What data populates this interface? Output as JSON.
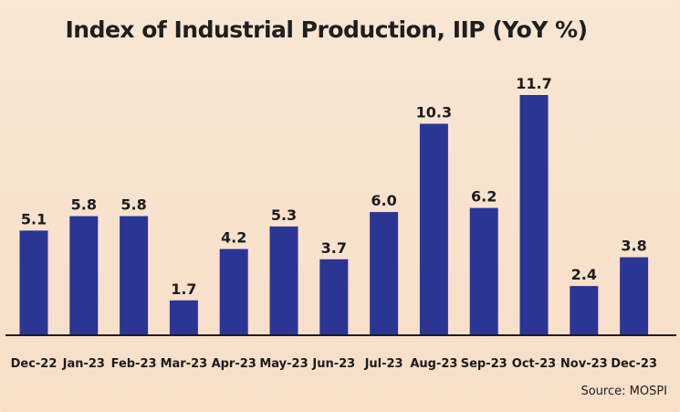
{
  "chart_data": {
    "type": "bar",
    "title": "Index of Industrial Production, IIP (YoY %)",
    "categories": [
      "Dec-22",
      "Jan-23",
      "Feb-23",
      "Mar-23",
      "Apr-23",
      "May-23",
      "Jun-23",
      "Jul-23",
      "Aug-23",
      "Sep-23",
      "Oct-23",
      "Nov-23",
      "Dec-23"
    ],
    "values": [
      5.1,
      5.8,
      5.8,
      1.7,
      4.2,
      5.3,
      3.7,
      6.0,
      10.3,
      6.2,
      11.7,
      2.4,
      3.8
    ],
    "value_labels": [
      "5.1",
      "5.8",
      "5.8",
      "1.7",
      "4.2",
      "5.3",
      "3.7",
      "6.0",
      "10.3",
      "6.2",
      "11.7",
      "2.4",
      "3.8"
    ],
    "xlabel": "",
    "ylabel": "",
    "ylim": [
      0,
      11.7
    ],
    "source": "Source: MOSPI",
    "colors": {
      "bar": "#2b3594",
      "background": "#f8e3cf"
    }
  }
}
